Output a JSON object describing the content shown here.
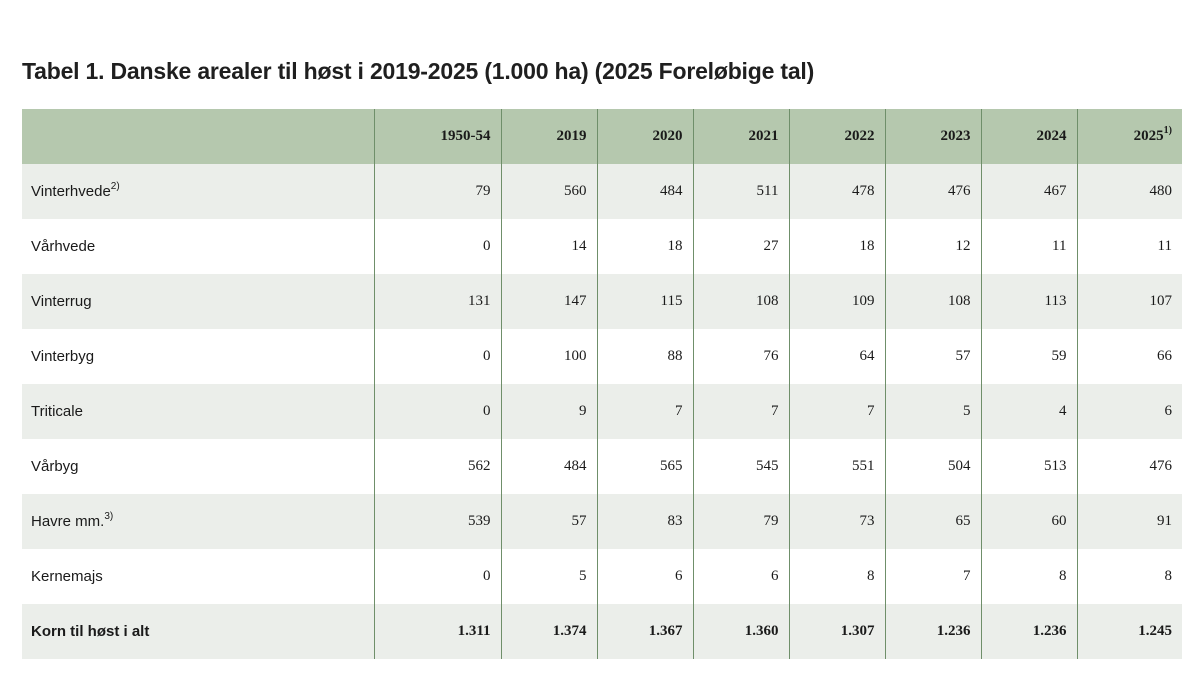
{
  "title": "Tabel 1. Danske arealer til høst i 2019-2025 (1.000 ha) (2025 Foreløbige tal)",
  "table": {
    "headers": [
      "",
      "1950-54",
      "2019",
      "2020",
      "2021",
      "2022",
      "2023",
      "2024",
      "2025"
    ],
    "header_notes": [
      "",
      "",
      "",
      "",
      "",
      "",
      "",
      "",
      "1)"
    ],
    "rows": [
      {
        "label": "Vinterhvede",
        "note": "2)",
        "values": [
          "79",
          "560",
          "484",
          "511",
          "478",
          "476",
          "467",
          "480"
        ]
      },
      {
        "label": "Vårhvede",
        "note": "",
        "values": [
          "0",
          "14",
          "18",
          "27",
          "18",
          "12",
          "11",
          "11"
        ]
      },
      {
        "label": "Vinterrug",
        "note": "",
        "values": [
          "131",
          "147",
          "115",
          "108",
          "109",
          "108",
          "113",
          "107"
        ]
      },
      {
        "label": "Vinterbyg",
        "note": "",
        "values": [
          "0",
          "100",
          "88",
          "76",
          "64",
          "57",
          "59",
          "66"
        ]
      },
      {
        "label": "Triticale",
        "note": "",
        "values": [
          "0",
          "9",
          "7",
          "7",
          "7",
          "5",
          "4",
          "6"
        ]
      },
      {
        "label": "Vårbyg",
        "note": "",
        "values": [
          "562",
          "484",
          "565",
          "545",
          "551",
          "504",
          "513",
          "476"
        ]
      },
      {
        "label": "Havre mm.",
        "note": "3)",
        "values": [
          "539",
          "57",
          "83",
          "79",
          "73",
          "65",
          "60",
          "91"
        ]
      },
      {
        "label": "Kernemajs",
        "note": "",
        "values": [
          "0",
          "5",
          "6",
          "6",
          "8",
          "7",
          "8",
          "8"
        ]
      },
      {
        "label": "Korn til høst i alt",
        "note": "",
        "values": [
          "1.311",
          "1.374",
          "1.367",
          "1.360",
          "1.307",
          "1.236",
          "1.236",
          "1.245"
        ],
        "total": true
      }
    ]
  },
  "colors": {
    "header_bg": "#b5c8ae",
    "row_alt_bg": "#ebeeea",
    "divider": "#6f8f6a"
  }
}
